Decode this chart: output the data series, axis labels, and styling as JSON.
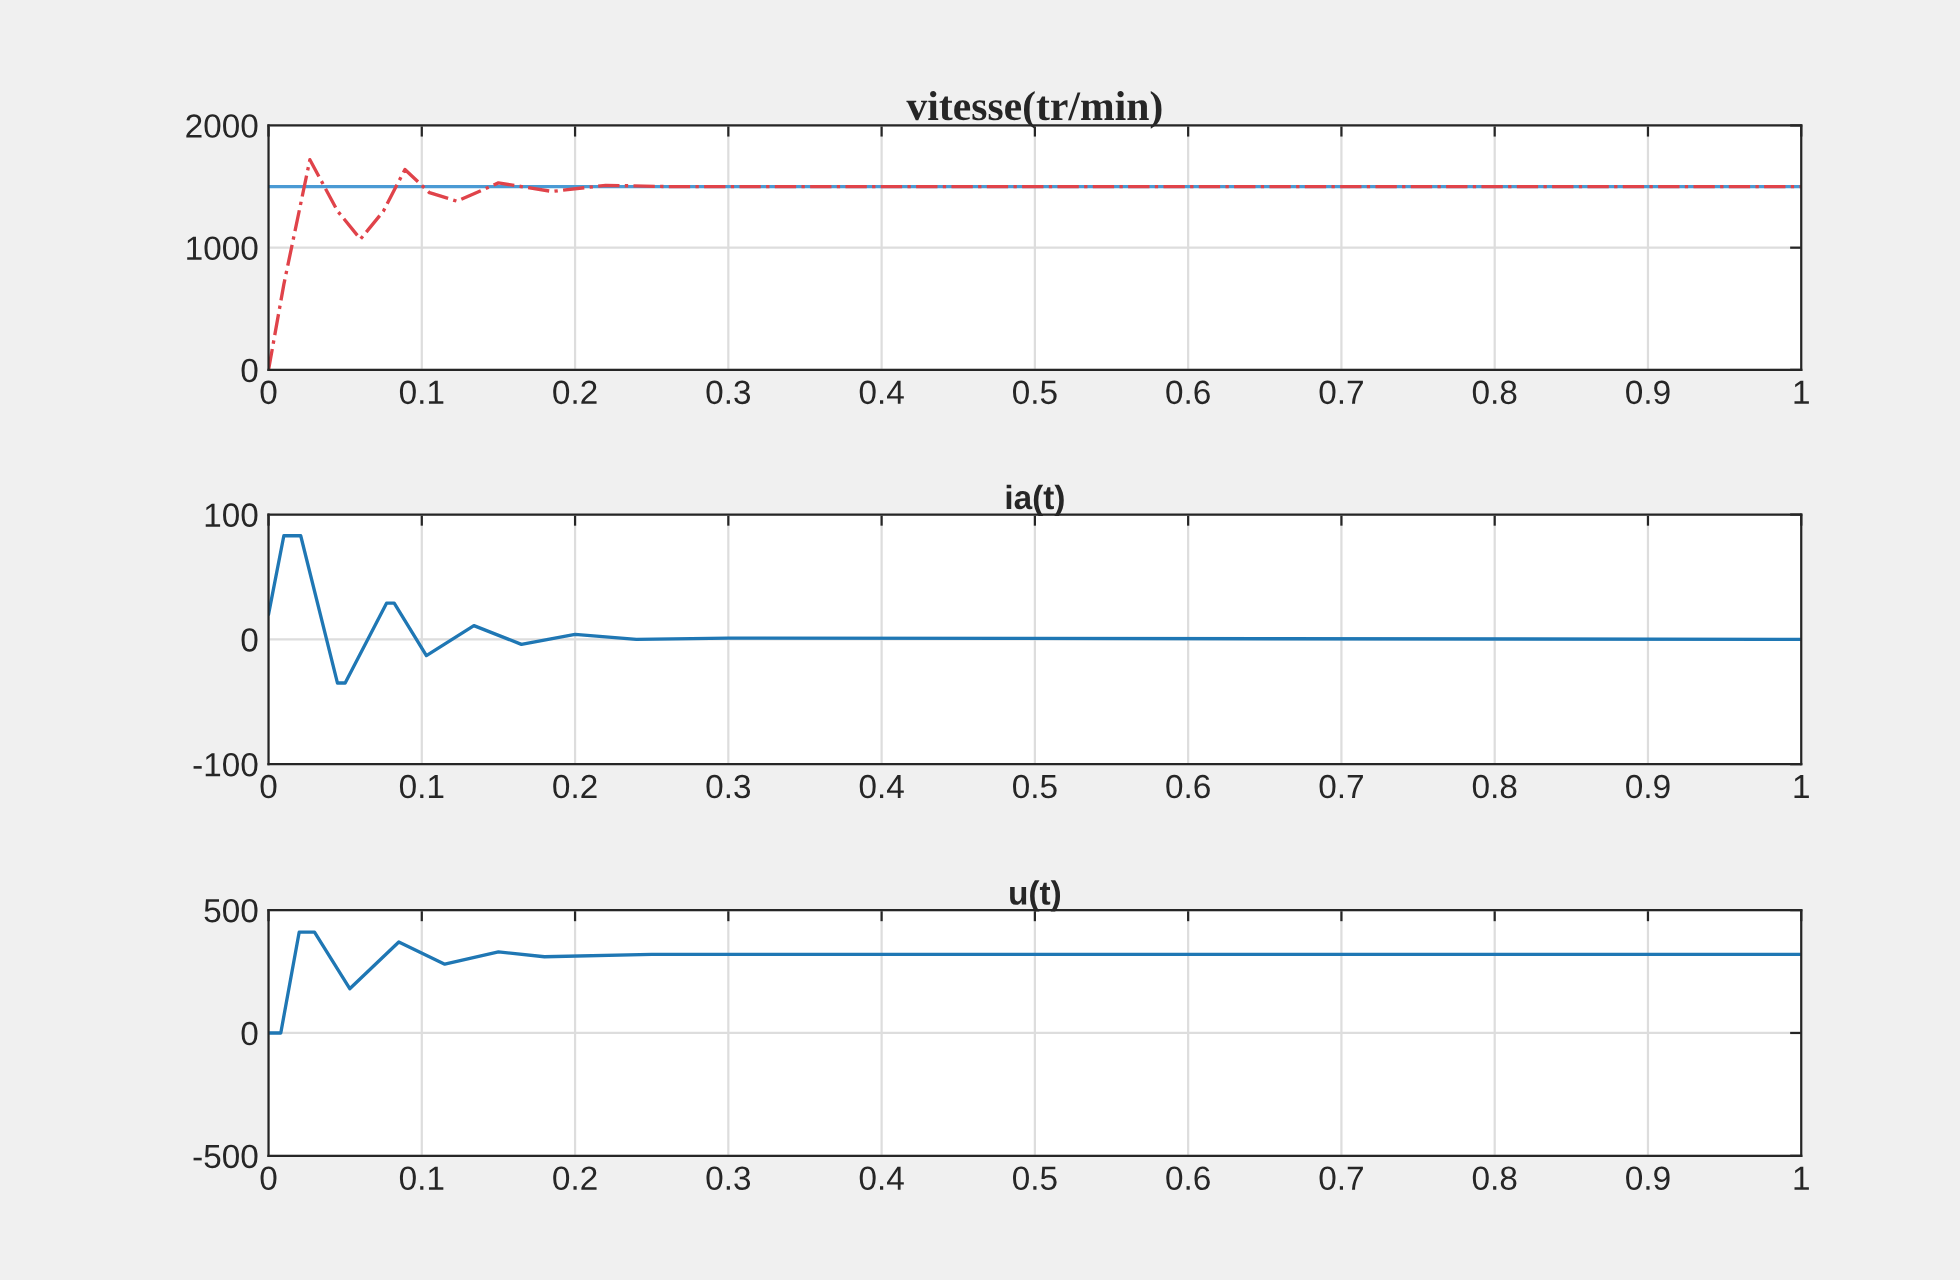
{
  "chart_data": [
    {
      "type": "line",
      "title": "vitesse(tr/min)",
      "xlim": [
        0,
        1
      ],
      "ylim": [
        0,
        2000
      ],
      "xticks": [
        0,
        {
          "value": 0.1,
          "label": "0.1"
        },
        {
          "value": 0.2,
          "label": "0.2"
        },
        {
          "value": 0.3,
          "label": "0.3"
        },
        {
          "value": 0.4,
          "label": "0.4"
        },
        {
          "value": 0.5,
          "label": "0.5"
        },
        {
          "value": 0.6,
          "label": "0.6"
        },
        {
          "value": 0.7,
          "label": "0.7"
        },
        {
          "value": 0.8,
          "label": "0.8"
        },
        {
          "value": 0.9,
          "label": "0.9"
        },
        1
      ],
      "yticks": [
        0,
        1000,
        2000
      ],
      "grid": true,
      "series": [
        {
          "color": "#4a9ad4",
          "line_style": "solid",
          "x": [
            0,
            1
          ],
          "values": [
            1500,
            1500
          ]
        },
        {
          "color": "#e0434a",
          "line_style": "dashdot",
          "x": [
            0,
            0.01,
            0.027,
            0.045,
            0.06,
            0.075,
            0.089,
            0.105,
            0.123,
            0.15,
            0.185,
            0.22,
            0.26,
            1
          ],
          "values": [
            0,
            700,
            1720,
            1300,
            1070,
            1300,
            1640,
            1450,
            1380,
            1530,
            1460,
            1510,
            1500,
            1500
          ]
        }
      ]
    },
    {
      "type": "line",
      "title": "ia(t)",
      "xlim": [
        0,
        1
      ],
      "ylim": [
        -100,
        100
      ],
      "xticks": [
        0,
        {
          "value": 0.1,
          "label": "0.1"
        },
        {
          "value": 0.2,
          "label": "0.2"
        },
        {
          "value": 0.3,
          "label": "0.3"
        },
        {
          "value": 0.4,
          "label": "0.4"
        },
        {
          "value": 0.5,
          "label": "0.5"
        },
        {
          "value": 0.6,
          "label": "0.6"
        },
        {
          "value": 0.7,
          "label": "0.7"
        },
        {
          "value": 0.8,
          "label": "0.8"
        },
        {
          "value": 0.9,
          "label": "0.9"
        },
        1
      ],
      "yticks": [
        -100,
        0,
        100
      ],
      "grid": true,
      "series": [
        {
          "color": "#1f77b4",
          "line_style": "solid",
          "x": [
            0,
            0.01,
            0.021,
            0.045,
            0.05,
            0.077,
            0.082,
            0.103,
            0.134,
            0.165,
            0.2,
            0.24,
            0.3,
            1
          ],
          "values": [
            20,
            83,
            83,
            -35,
            -35,
            29,
            29,
            -13,
            11,
            -4,
            4,
            0,
            1,
            0
          ]
        }
      ]
    },
    {
      "type": "line",
      "title": "u(t)",
      "xlim": [
        0,
        1
      ],
      "ylim": [
        -500,
        500
      ],
      "xticks": [
        0,
        {
          "value": 0.1,
          "label": "0.1"
        },
        {
          "value": 0.2,
          "label": "0.2"
        },
        {
          "value": 0.3,
          "label": "0.3"
        },
        {
          "value": 0.4,
          "label": "0.4"
        },
        {
          "value": 0.5,
          "label": "0.5"
        },
        {
          "value": 0.6,
          "label": "0.6"
        },
        {
          "value": 0.7,
          "label": "0.7"
        },
        {
          "value": 0.8,
          "label": "0.8"
        },
        {
          "value": 0.9,
          "label": "0.9"
        },
        1
      ],
      "yticks": [
        -500,
        0,
        500
      ],
      "grid": true,
      "series": [
        {
          "color": "#1f77b4",
          "line_style": "solid",
          "x": [
            0,
            0.008,
            0.02,
            0.03,
            0.053,
            0.085,
            0.115,
            0.15,
            0.18,
            0.25,
            1
          ],
          "values": [
            0,
            0,
            410,
            410,
            180,
            370,
            280,
            330,
            310,
            320,
            320
          ]
        }
      ]
    }
  ]
}
